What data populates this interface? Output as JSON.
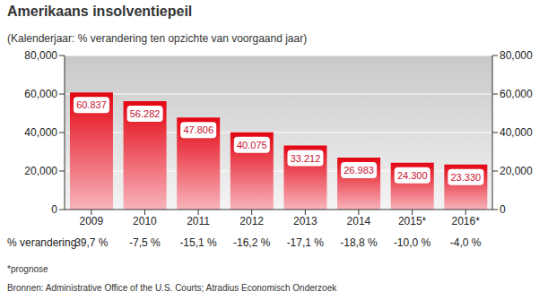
{
  "chart_data": {
    "type": "bar",
    "title": "Amerikaans insolventiepeil",
    "subtitle": "(Kalenderjaar: % verandering ten opzichte van voorgaand jaar)",
    "categories": [
      "2009",
      "2010",
      "2011",
      "2012",
      "2013",
      "2014",
      "2015*",
      "2016*"
    ],
    "values": [
      60837,
      56282,
      47806,
      40075,
      33212,
      26983,
      24300,
      23330
    ],
    "value_labels": [
      "60.837",
      "56.282",
      "47.806",
      "40.075",
      "33.212",
      "26.983",
      "24.300",
      "23.330"
    ],
    "data_labels": true,
    "color": "#e30613",
    "ylim": [
      0,
      80000
    ],
    "yticks": [
      0,
      {
        "value": 20000,
        "label": "20,000"
      },
      {
        "value": 40000,
        "label": "40,000"
      },
      {
        "value": 60000,
        "label": "60,000"
      },
      {
        "value": 80000,
        "label": "80,000"
      }
    ],
    "grid": true,
    "change": {
      "label": "% verandering",
      "values": [
        39.7,
        -7.5,
        -15.1,
        -16.2,
        -17.1,
        -18.8,
        -10.0,
        -4.0
      ],
      "value_labels": [
        "39,7 %",
        "-7,5 %",
        "-15,1 %",
        "-16,2 %",
        "-17,1 %",
        "-18,8 %",
        "-10,0 %",
        "-4,0 %"
      ]
    },
    "footnote": "*prognose",
    "source": "Bronnen: Administrative Office of the U.S. Courts; Atradius Economisch Onderzoek"
  }
}
